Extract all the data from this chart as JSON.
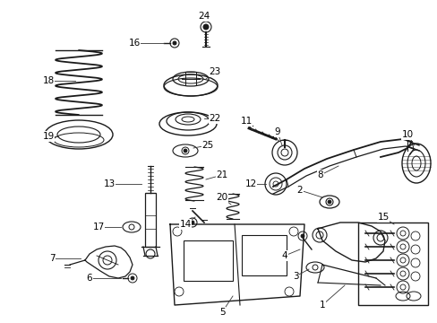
{
  "bg_color": "#ffffff",
  "line_color": "#1a1a1a",
  "label_color": "#000000",
  "font_size": 7.5,
  "figsize": [
    4.89,
    3.6
  ],
  "dpi": 100
}
